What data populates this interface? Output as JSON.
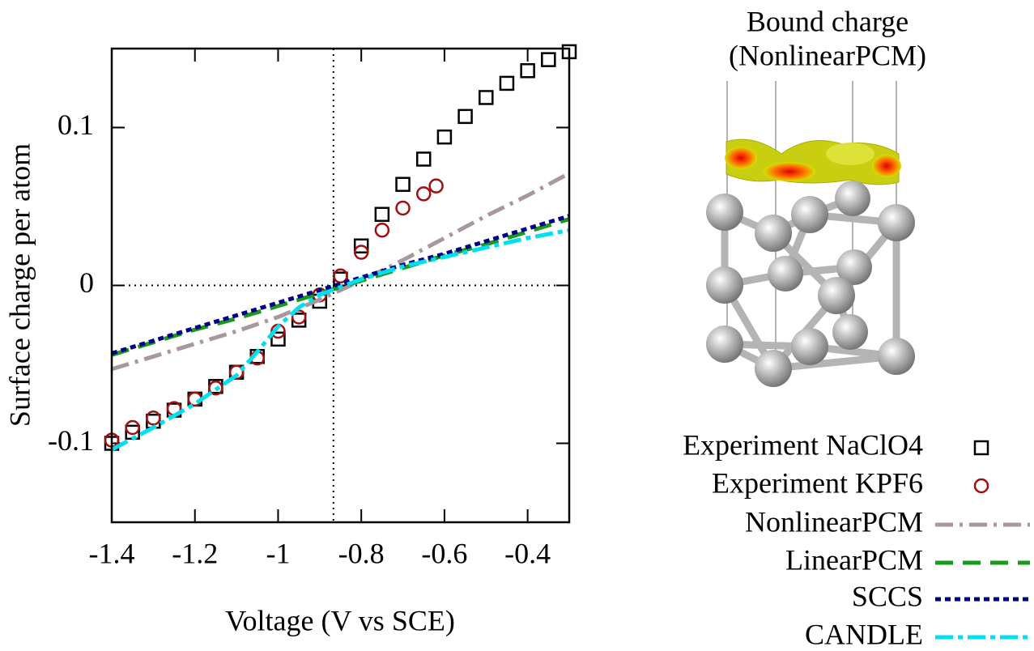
{
  "chart_data": {
    "type": "scatter",
    "xlabel": "Voltage (V vs SCE)",
    "ylabel": "Surface charge per atom",
    "xlim": [
      -1.4,
      -0.3
    ],
    "ylim": [
      -0.15,
      0.15
    ],
    "xticks": [
      -1.4,
      -1.2,
      -1,
      -0.8,
      -0.6,
      -0.4
    ],
    "yticks": [
      -0.1,
      0,
      0.1
    ],
    "vline": -0.867,
    "hline": 0,
    "inset_title": [
      "Bound charge",
      "(NonlinearPCM)"
    ],
    "series": [
      {
        "name": "Experiment NaClO4",
        "color": "#000000",
        "marker": "square",
        "x": [
          -1.4,
          -1.35,
          -1.3,
          -1.25,
          -1.2,
          -1.15,
          -1.1,
          -1.05,
          -1.0,
          -0.95,
          -0.9,
          -0.85,
          -0.8,
          -0.75,
          -0.7,
          -0.65,
          -0.6,
          -0.55,
          -0.5,
          -0.45,
          -0.4,
          -0.35,
          -0.3
        ],
        "values": [
          -0.1,
          -0.093,
          -0.086,
          -0.079,
          -0.072,
          -0.064,
          -0.055,
          -0.045,
          -0.034,
          -0.022,
          -0.01,
          0.004,
          0.025,
          0.045,
          0.064,
          0.08,
          0.094,
          0.107,
          0.119,
          0.128,
          0.136,
          0.143,
          0.148
        ]
      },
      {
        "name": "Experiment KPF6",
        "color": "#a01010",
        "marker": "circle",
        "x": [
          -1.4,
          -1.35,
          -1.3,
          -1.25,
          -1.2,
          -1.15,
          -1.1,
          -1.05,
          -1.0,
          -0.95,
          -0.9,
          -0.85,
          -0.8,
          -0.75,
          -0.7,
          -0.65,
          -0.62
        ],
        "values": [
          -0.098,
          -0.09,
          -0.084,
          -0.078,
          -0.072,
          -0.065,
          -0.055,
          -0.046,
          -0.029,
          -0.02,
          -0.006,
          0.006,
          0.021,
          0.035,
          0.049,
          0.058,
          0.063
        ]
      },
      {
        "name": "NonlinearPCM",
        "color": "#a8989e",
        "dash": "22 8 4 8",
        "x": [
          -1.4,
          -1.3,
          -1.2,
          -1.1,
          -1.0,
          -0.9,
          -0.8,
          -0.7,
          -0.6,
          -0.5,
          -0.4,
          -0.3
        ],
        "values": [
          -0.053,
          -0.045,
          -0.037,
          -0.029,
          -0.02,
          -0.009,
          0.003,
          0.016,
          0.03,
          0.044,
          0.057,
          0.071
        ]
      },
      {
        "name": "LinearPCM",
        "color": "#1a9a1a",
        "dash": "22 12",
        "x": [
          -1.4,
          -1.3,
          -1.2,
          -1.1,
          -1.0,
          -0.9,
          -0.8,
          -0.7,
          -0.6,
          -0.5,
          -0.4,
          -0.3
        ],
        "values": [
          -0.044,
          -0.036,
          -0.028,
          -0.021,
          -0.013,
          -0.005,
          0.003,
          0.011,
          0.019,
          0.026,
          0.034,
          0.042
        ]
      },
      {
        "name": "SCCS",
        "color": "#00008b",
        "dash": "7 5",
        "x": [
          -1.4,
          -1.3,
          -1.2,
          -1.1,
          -1.0,
          -0.9,
          -0.8,
          -0.7,
          -0.6,
          -0.5,
          -0.4,
          -0.3
        ],
        "values": [
          -0.043,
          -0.035,
          -0.027,
          -0.019,
          -0.011,
          -0.003,
          0.005,
          0.013,
          0.02,
          0.028,
          0.036,
          0.044
        ]
      },
      {
        "name": "CANDLE",
        "color": "#00e0f0",
        "dash": "22 6 6 6",
        "x": [
          -1.4,
          -1.3,
          -1.2,
          -1.1,
          -1.05,
          -1.0,
          -0.95,
          -0.9,
          -0.8,
          -0.7,
          -0.6,
          -0.5,
          -0.4,
          -0.3
        ],
        "values": [
          -0.104,
          -0.09,
          -0.075,
          -0.057,
          -0.042,
          -0.026,
          -0.014,
          -0.006,
          0.004,
          0.012,
          0.018,
          0.024,
          0.03,
          0.035
        ]
      }
    ]
  }
}
